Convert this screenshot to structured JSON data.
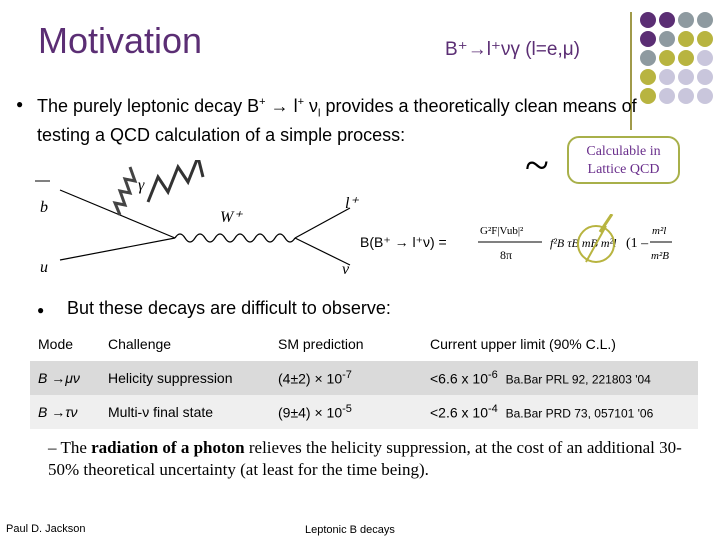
{
  "title": "Motivation",
  "subtitle": "B⁺→l⁺νγ (l=e,μ)",
  "bullet1": {
    "part1": "The purely leptonic decay B",
    "sup1": "+",
    "part2": " → l",
    "sup2": "+",
    "part3": " ν",
    "sub1": "l",
    "part4": " provides a theoretically clean means of testing a QCD calculation of a simple process:"
  },
  "callout": {
    "line1": "Calculable in",
    "line2": "Lattice QCD"
  },
  "tilde": "~",
  "feynman": {
    "b": "b",
    "u": "u",
    "gamma": "γ",
    "w": "W⁺",
    "lepton": "l⁺",
    "nu": "ν"
  },
  "formula": {
    "lhs": "B(B⁺ → l⁺ν) =",
    "num": "G²F|Vub|²",
    "den": "8π",
    "rest": "f²B τB mB m²l",
    "paren_num": "m²l",
    "paren_den": "m²B"
  },
  "bullet2": "But these decays are difficult to observe:",
  "table": {
    "headers": [
      "Mode",
      "Challenge",
      "SM prediction",
      "Current upper limit (90% C.L.)"
    ],
    "rows": [
      {
        "mode": "B →μν",
        "challenge": "Helicity suppression",
        "sm": "(4±2) × 10",
        "sm_exp": "-7",
        "limit": "<6.6 x 10",
        "limit_exp": "-6",
        "ref": "Ba.Bar PRL 92, 221803 '04"
      },
      {
        "mode": "B →τν",
        "challenge": "Multi-ν final state",
        "sm": "(9±4) × 10",
        "sm_exp": "-5",
        "limit": "<2.6 x 10",
        "limit_exp": "-4",
        "ref": "Ba.Bar PRD 73, 057101 '06"
      }
    ]
  },
  "dash": {
    "prefix": "– The ",
    "bold": "radiation of a photon",
    "suffix": " relieves the helicity suppression, at the cost of an additional 30-50% theoretical uncertainty (at least for the time being)."
  },
  "footer": {
    "left": "Paul D. Jackson",
    "center": "Leptonic B decays"
  },
  "colors": {
    "purple": "#5b2e74",
    "gray": "#8e9aa0",
    "olive": "#b8b440",
    "lavender": "#c9c6dc"
  }
}
